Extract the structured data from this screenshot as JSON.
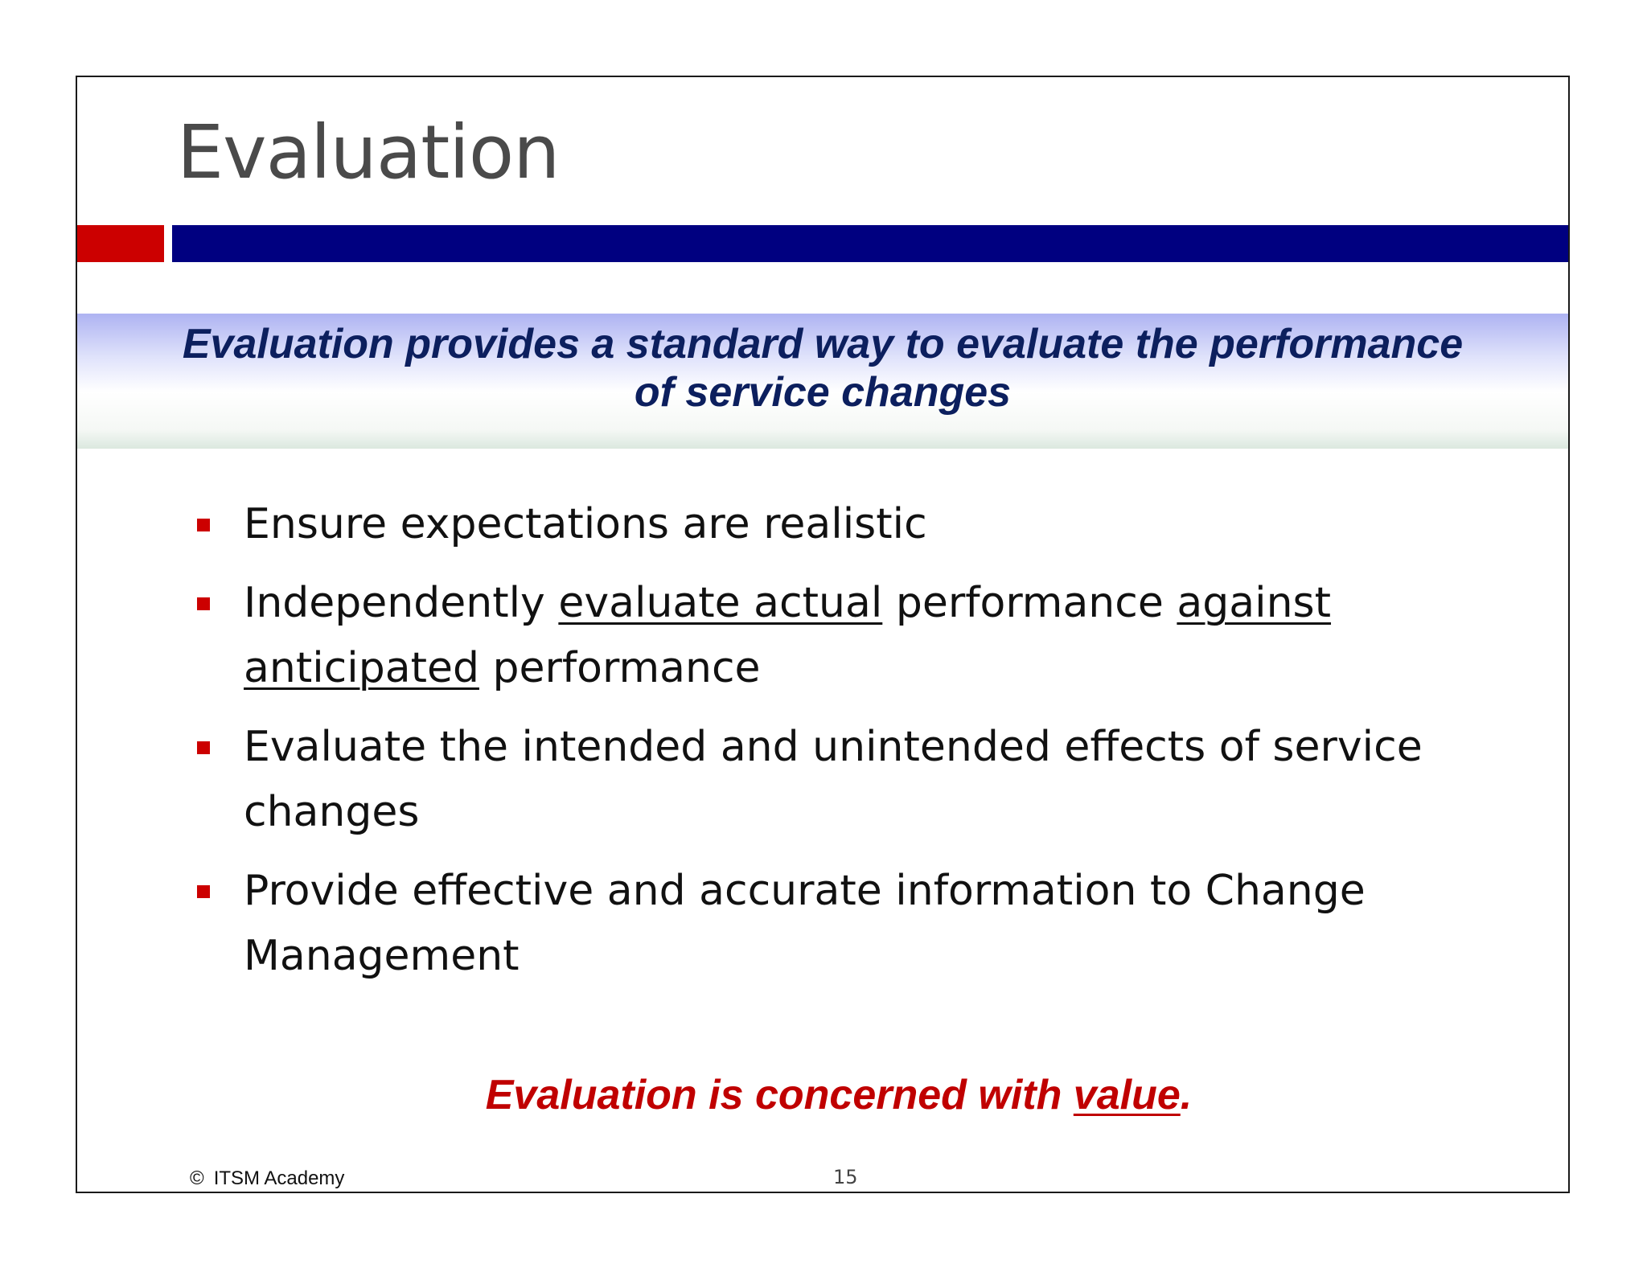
{
  "slide": {
    "title": "Evaluation",
    "callout": {
      "line1": "Evaluation provides a standard way to evaluate the performance",
      "line2": "of service changes"
    },
    "bullets": [
      {
        "text": "Ensure expectations are realistic"
      },
      {
        "part1": "Independently ",
        "underline1": "evaluate actual",
        "part2": " performance ",
        "underline2": "against anticipated",
        "part3": " performance"
      },
      {
        "text": "Evaluate the intended and unintended effects of service changes"
      },
      {
        "text": "Provide  effective and accurate information to Change Management"
      }
    ],
    "conclusion": {
      "before": "Evaluation is concerned with ",
      "underlined": "value",
      "after": "."
    },
    "footer": {
      "copyright_symbol": "©",
      "organization": "ITSM Academy",
      "page_number": "15"
    },
    "colors": {
      "accent_red": "#cc0000",
      "accent_navy": "#000080",
      "callout_text": "#0c1f5e",
      "conclusion_text": "#c00000"
    }
  }
}
